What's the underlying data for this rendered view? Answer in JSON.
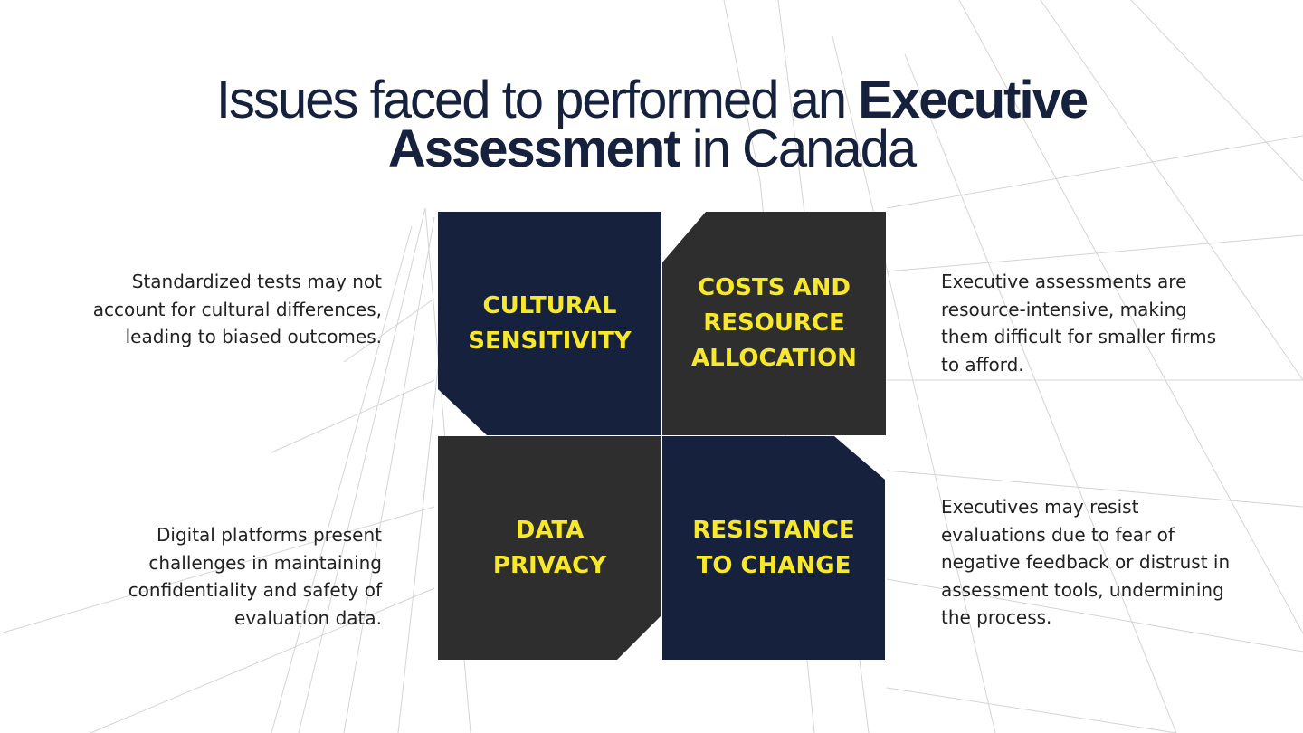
{
  "title": {
    "part1": "Issues faced to performed an",
    "bold1": "Executive",
    "bold2": "Assessment",
    "part2": "in Canada"
  },
  "quadrants": [
    {
      "label": "CULTURAL SENSITIVITY",
      "description": "Standardized tests may not account for cultural differences, leading to biased outcomes."
    },
    {
      "label": "COSTS AND RESOURCE ALLOCATION",
      "description": "Executive assessments are resource-intensive, making them difficult for smaller firms to afford."
    },
    {
      "label": "DATA PRIVACY",
      "description": "Digital platforms present challenges in maintaining confidentiality and safety of evaluation data."
    },
    {
      "label": "RESISTANCE TO CHANGE",
      "description": "Executives may resist evaluations due to fear of negative feedback or distrust in assessment tools, undermining the process."
    }
  ]
}
